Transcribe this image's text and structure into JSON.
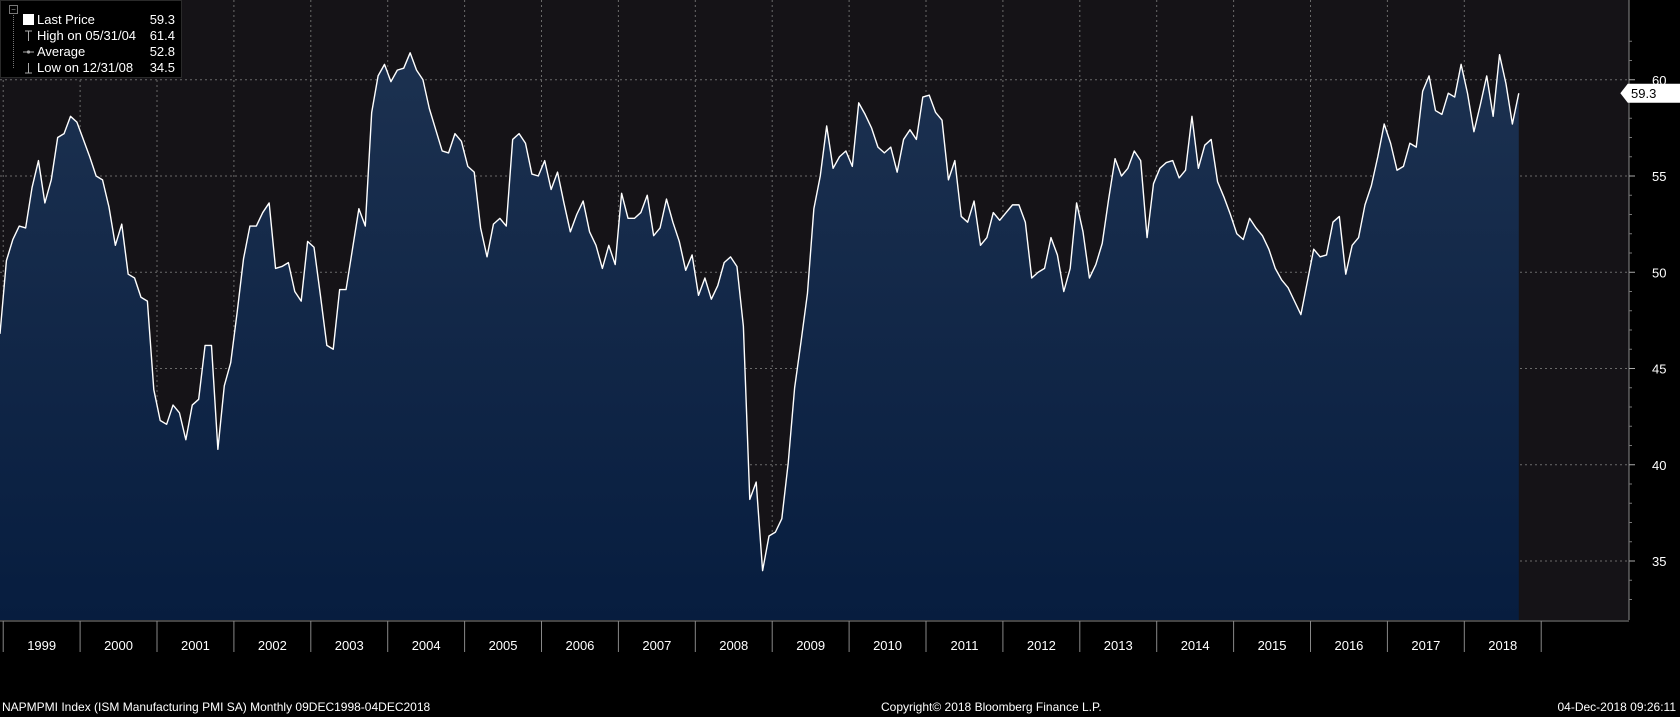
{
  "chart_data": {
    "type": "area",
    "ticker": "NAPMPMI Index",
    "ylim": [
      32,
      63
    ],
    "yticks": [
      35,
      40,
      45,
      50,
      55,
      60
    ],
    "xlabels": [
      "1999",
      "2000",
      "2001",
      "2002",
      "2003",
      "2004",
      "2005",
      "2006",
      "2007",
      "2008",
      "2009",
      "2010",
      "2011",
      "2012",
      "2013",
      "2014",
      "2015",
      "2016",
      "2017",
      "2018"
    ],
    "last_value_label": "59.3",
    "legend": [
      {
        "label": "Last Price",
        "value": "59.3"
      },
      {
        "label": "High on 05/31/04",
        "value": "61.4"
      },
      {
        "label": "Average",
        "value": "52.8"
      },
      {
        "label": "Low on 12/31/08",
        "value": "34.5"
      }
    ],
    "series": [
      {
        "name": "ISM Manufacturing PMI SA",
        "start": "1998-12",
        "frequency": "monthly",
        "values": [
          46.8,
          50.6,
          51.7,
          52.4,
          52.3,
          54.4,
          55.8,
          53.6,
          54.8,
          57.0,
          57.2,
          58.1,
          57.8,
          56.9,
          56.0,
          55.0,
          54.8,
          53.4,
          51.4,
          52.5,
          49.9,
          49.7,
          48.7,
          48.5,
          43.9,
          42.3,
          42.1,
          43.1,
          42.7,
          41.3,
          43.1,
          43.4,
          46.2,
          46.2,
          40.8,
          44.1,
          45.3,
          47.9,
          50.7,
          52.4,
          52.4,
          53.1,
          53.6,
          50.2,
          50.3,
          50.5,
          49.0,
          48.5,
          51.6,
          51.3,
          48.8,
          46.2,
          46.0,
          49.1,
          49.1,
          51.2,
          53.3,
          52.4,
          58.3,
          60.2,
          60.8,
          59.9,
          60.5,
          60.6,
          61.4,
          60.5,
          60.0,
          58.5,
          57.4,
          56.3,
          56.2,
          57.2,
          56.8,
          55.5,
          55.2,
          52.3,
          50.8,
          52.5,
          52.8,
          52.4,
          56.9,
          57.2,
          56.7,
          55.1,
          55.0,
          55.8,
          54.3,
          55.2,
          53.6,
          52.1,
          53.0,
          53.7,
          52.1,
          51.4,
          50.2,
          51.4,
          50.4,
          54.1,
          52.8,
          52.8,
          53.1,
          54.0,
          51.9,
          52.3,
          53.8,
          52.6,
          51.6,
          50.1,
          50.9,
          48.8,
          49.7,
          48.6,
          49.3,
          50.5,
          50.8,
          50.3,
          47.2,
          38.2,
          39.1,
          34.5,
          36.3,
          36.5,
          37.2,
          40.1,
          44.0,
          46.4,
          48.9,
          53.3,
          55.0,
          57.6,
          55.4,
          56.0,
          56.3,
          55.5,
          58.8,
          58.2,
          57.5,
          56.5,
          56.2,
          56.5,
          55.2,
          56.9,
          57.4,
          56.9,
          59.1,
          59.2,
          58.3,
          57.9,
          54.8,
          55.8,
          52.9,
          52.6,
          53.7,
          51.4,
          51.8,
          53.1,
          52.7,
          53.1,
          53.5,
          53.5,
          52.6,
          49.7,
          50.0,
          50.2,
          51.8,
          50.9,
          49.0,
          50.2,
          53.6,
          52.1,
          49.7,
          50.4,
          51.5,
          53.8,
          55.9,
          55.0,
          55.4,
          56.3,
          55.8,
          51.8,
          54.6,
          55.4,
          55.7,
          55.8,
          54.9,
          55.3,
          58.1,
          55.4,
          56.6,
          56.9,
          54.7,
          53.9,
          53.0,
          52.0,
          51.7,
          52.8,
          52.3,
          51.9,
          51.2,
          50.2,
          49.6,
          49.2,
          48.5,
          47.8,
          49.5,
          51.2,
          50.8,
          50.9,
          52.6,
          52.9,
          49.9,
          51.4,
          51.8,
          53.5,
          54.5,
          56.0,
          57.7,
          56.7,
          55.3,
          55.5,
          56.7,
          56.5,
          59.4,
          60.2,
          58.4,
          58.2,
          59.3,
          59.1,
          60.8,
          59.3,
          57.3,
          58.7,
          60.2,
          58.1,
          61.3,
          59.8,
          57.7,
          59.3
        ]
      }
    ],
    "footer": {
      "left": "NAPMPMI Index (ISM Manufacturing PMI SA)  Monthly 09DEC1998-04DEC2018",
      "center": "Copyright© 2018 Bloomberg Finance L.P.",
      "right": "04-Dec-2018 09:26:11"
    },
    "colors": {
      "background": "#000000",
      "plot_top": "#151317",
      "fill_top": "#1c3150",
      "fill_bottom": "#071d3f",
      "line": "#ffffff",
      "grid": "#6a6a6a",
      "text": "#ffffff"
    }
  }
}
